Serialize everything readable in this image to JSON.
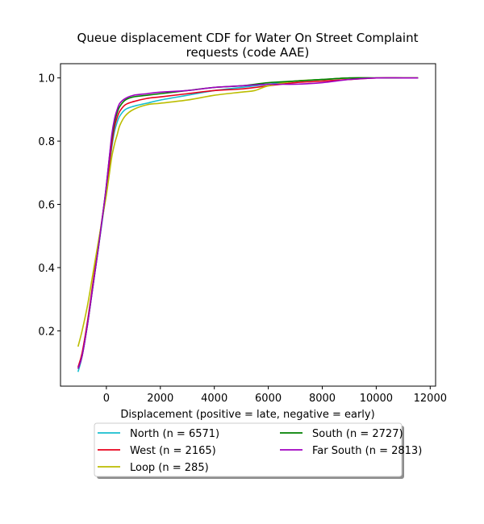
{
  "chart_data": {
    "type": "line",
    "title_lines": [
      "Queue displacement CDF for Water On Street Complaint",
      "requests (code AAE)"
    ],
    "xlabel": "Displacement (positive = late, negative = early)",
    "ylabel": "",
    "xlim": [
      -1700,
      12200
    ],
    "ylim": [
      0.025,
      1.045
    ],
    "xticks": [
      0,
      2000,
      4000,
      6000,
      8000,
      10000,
      12000
    ],
    "xtick_labels": [
      "0",
      "2000",
      "4000",
      "6000",
      "8000",
      "10000",
      "12000"
    ],
    "yticks": [
      0.2,
      0.4,
      0.6,
      0.8,
      1.0
    ],
    "ytick_labels": [
      "0.2",
      "0.4",
      "0.6",
      "0.8",
      "1.0"
    ],
    "grid": false,
    "legend_position": "below",
    "series": [
      {
        "name": "North (n = 6571)",
        "color": "#17becf",
        "x": [
          -1050,
          -900,
          -700,
          -500,
          -300,
          -100,
          0,
          100,
          200,
          300,
          400,
          500,
          700,
          1000,
          1500,
          2000,
          3000,
          4000,
          5000,
          6000,
          7000,
          8000,
          9000,
          10000,
          11000,
          11550
        ],
        "y": [
          0.07,
          0.12,
          0.22,
          0.34,
          0.46,
          0.58,
          0.64,
          0.71,
          0.78,
          0.83,
          0.86,
          0.88,
          0.9,
          0.91,
          0.92,
          0.93,
          0.945,
          0.96,
          0.97,
          0.98,
          0.99,
          0.995,
          1.0,
          1.0,
          1.0,
          1.0
        ]
      },
      {
        "name": "West (n = 2165)",
        "color": "#e8001c",
        "x": [
          -1050,
          -900,
          -700,
          -500,
          -300,
          -100,
          0,
          100,
          200,
          300,
          400,
          500,
          700,
          1000,
          1500,
          2000,
          3000,
          4000,
          5000,
          6000,
          7000,
          8000,
          9000,
          10000,
          11000,
          11550
        ],
        "y": [
          0.085,
          0.13,
          0.23,
          0.35,
          0.47,
          0.59,
          0.65,
          0.72,
          0.79,
          0.845,
          0.875,
          0.895,
          0.915,
          0.925,
          0.935,
          0.94,
          0.95,
          0.96,
          0.965,
          0.975,
          0.985,
          0.99,
          0.995,
          1.0,
          1.0,
          1.0
        ]
      },
      {
        "name": "Loop (n = 285)",
        "color": "#bcbd00",
        "x": [
          -1050,
          -900,
          -700,
          -500,
          -300,
          -100,
          0,
          100,
          200,
          300,
          400,
          500,
          700,
          1000,
          1500,
          2000,
          3000,
          4000,
          5000,
          5500,
          6000,
          7000,
          8000,
          9000,
          10000,
          11000,
          11550
        ],
        "y": [
          0.15,
          0.2,
          0.28,
          0.38,
          0.48,
          0.58,
          0.63,
          0.69,
          0.75,
          0.79,
          0.82,
          0.85,
          0.88,
          0.9,
          0.915,
          0.92,
          0.93,
          0.945,
          0.955,
          0.96,
          0.975,
          0.99,
          0.995,
          1.0,
          1.0,
          1.0,
          1.0
        ]
      },
      {
        "name": "South (n = 2727)",
        "color": "#008000",
        "x": [
          -1050,
          -900,
          -700,
          -500,
          -300,
          -100,
          0,
          100,
          200,
          300,
          400,
          500,
          700,
          1000,
          1500,
          2000,
          3000,
          4000,
          5000,
          6000,
          7000,
          8000,
          9000,
          10000,
          11000,
          11550
        ],
        "y": [
          0.08,
          0.12,
          0.22,
          0.34,
          0.46,
          0.59,
          0.66,
          0.74,
          0.81,
          0.86,
          0.89,
          0.91,
          0.93,
          0.94,
          0.945,
          0.95,
          0.96,
          0.97,
          0.975,
          0.985,
          0.99,
          0.995,
          1.0,
          1.0,
          1.0,
          1.0
        ]
      },
      {
        "name": "Far South (n = 2813)",
        "color": "#a000c0",
        "x": [
          -1050,
          -900,
          -700,
          -500,
          -300,
          -100,
          0,
          100,
          200,
          300,
          400,
          500,
          700,
          1000,
          1500,
          2000,
          3000,
          4000,
          5000,
          6000,
          7000,
          8000,
          9000,
          10000,
          11000,
          11550
        ],
        "y": [
          0.08,
          0.12,
          0.22,
          0.34,
          0.46,
          0.59,
          0.66,
          0.74,
          0.82,
          0.87,
          0.9,
          0.92,
          0.935,
          0.945,
          0.95,
          0.955,
          0.96,
          0.97,
          0.975,
          0.98,
          0.98,
          0.985,
          0.995,
          1.0,
          1.0,
          1.0
        ]
      }
    ]
  }
}
